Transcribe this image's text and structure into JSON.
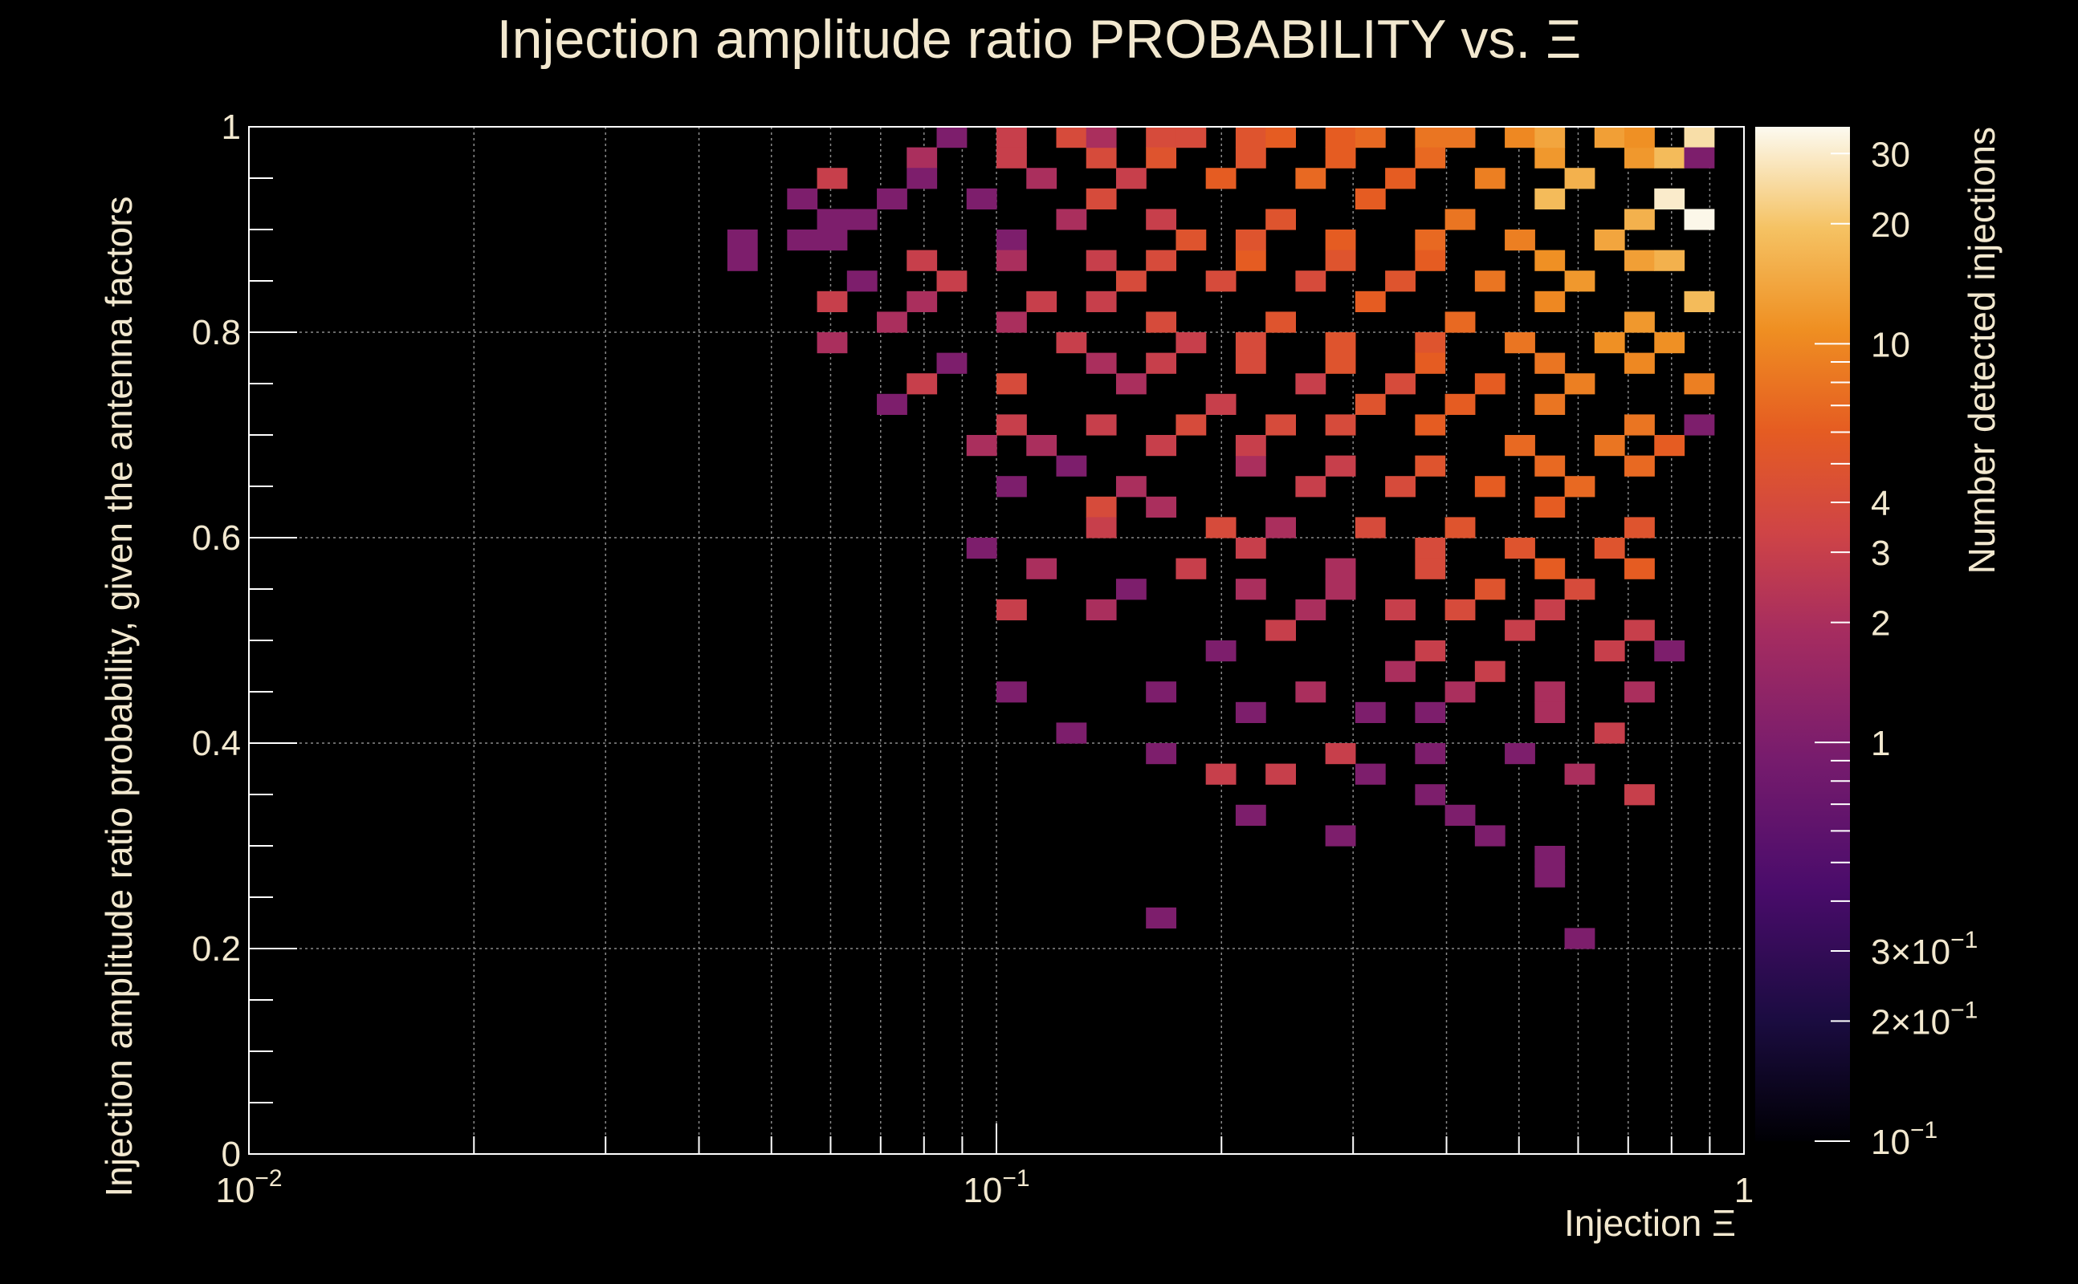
{
  "chart_data": {
    "type": "heatmap",
    "title": "Injection amplitude ratio PROBABILITY vs.  Ξ",
    "xlabel": "Injection Ξ",
    "ylabel": "Injection amplitude ratio probability, given the antenna factors",
    "zlabel": "Number detected injections",
    "x_scale": "log",
    "z_scale": "log",
    "xlim": [
      0.01,
      1
    ],
    "ylim": [
      0,
      1
    ],
    "zlim": [
      0.1,
      35
    ],
    "grid": true,
    "colorbar": "right",
    "x_ticks": [
      {
        "value": 0.01,
        "base": "10",
        "exp": "−2"
      },
      {
        "value": 0.1,
        "base": "10",
        "exp": "−1"
      },
      {
        "value": 1,
        "base": "1",
        "exp": ""
      }
    ],
    "y_ticks": [
      {
        "value": 0,
        "label": "0"
      },
      {
        "value": 0.2,
        "label": "0.2"
      },
      {
        "value": 0.4,
        "label": "0.4"
      },
      {
        "value": 0.6,
        "label": "0.6"
      },
      {
        "value": 0.8,
        "label": "0.8"
      },
      {
        "value": 1,
        "label": "1"
      }
    ],
    "z_ticks": [
      {
        "value": 0.1,
        "label": "10",
        "exp": "−1"
      },
      {
        "value": 0.2,
        "label": "2×10",
        "exp": "−1"
      },
      {
        "value": 0.3,
        "label": "3×10",
        "exp": "−1"
      },
      {
        "value": 1,
        "label": "1",
        "exp": ""
      },
      {
        "value": 2,
        "label": "2",
        "exp": ""
      },
      {
        "value": 3,
        "label": "3",
        "exp": ""
      },
      {
        "value": 4,
        "label": "4",
        "exp": ""
      },
      {
        "value": 10,
        "label": "10",
        "exp": ""
      },
      {
        "value": 20,
        "label": "20",
        "exp": ""
      },
      {
        "value": 30,
        "label": "30",
        "exp": ""
      }
    ],
    "bins": {
      "nx": 50,
      "ny": 50,
      "note_x_range": [
        0.01,
        1
      ],
      "note_y_range": [
        0,
        1
      ]
    },
    "cells": [
      [
        0.044,
        0.89,
        1
      ],
      [
        0.044,
        0.87,
        1
      ],
      [
        0.055,
        0.93,
        1
      ],
      [
        0.055,
        0.89,
        1
      ],
      [
        0.059,
        0.95,
        3
      ],
      [
        0.059,
        0.91,
        1
      ],
      [
        0.059,
        0.89,
        1
      ],
      [
        0.063,
        0.83,
        3
      ],
      [
        0.063,
        0.79,
        2
      ],
      [
        0.067,
        0.91,
        1
      ],
      [
        0.067,
        0.85,
        1
      ],
      [
        0.072,
        0.93,
        1
      ],
      [
        0.072,
        0.81,
        2
      ],
      [
        0.072,
        0.73,
        1
      ],
      [
        0.077,
        0.97,
        2
      ],
      [
        0.077,
        0.87,
        3
      ],
      [
        0.082,
        0.95,
        1
      ],
      [
        0.082,
        0.83,
        2
      ],
      [
        0.082,
        0.75,
        3
      ],
      [
        0.088,
        0.99,
        1
      ],
      [
        0.088,
        0.85,
        3
      ],
      [
        0.088,
        0.77,
        1
      ],
      [
        0.094,
        0.93,
        1
      ],
      [
        0.094,
        0.69,
        2
      ],
      [
        0.094,
        0.59,
        1
      ],
      [
        0.1,
        0.99,
        3
      ],
      [
        0.1,
        0.89,
        1
      ],
      [
        0.1,
        0.81,
        2
      ],
      [
        0.1,
        0.71,
        3
      ],
      [
        0.1,
        0.53,
        3
      ],
      [
        0.107,
        0.97,
        3
      ],
      [
        0.107,
        0.87,
        2
      ],
      [
        0.107,
        0.75,
        4
      ],
      [
        0.107,
        0.65,
        1
      ],
      [
        0.107,
        0.45,
        1
      ],
      [
        0.115,
        0.95,
        2
      ],
      [
        0.115,
        0.83,
        3
      ],
      [
        0.115,
        0.69,
        2
      ],
      [
        0.115,
        0.57,
        2
      ],
      [
        0.123,
        0.99,
        4
      ],
      [
        0.123,
        0.91,
        2
      ],
      [
        0.123,
        0.79,
        3
      ],
      [
        0.123,
        0.67,
        1
      ],
      [
        0.123,
        0.41,
        1
      ],
      [
        0.132,
        0.97,
        4
      ],
      [
        0.132,
        0.87,
        3
      ],
      [
        0.132,
        0.77,
        2
      ],
      [
        0.132,
        0.63,
        4
      ],
      [
        0.132,
        0.53,
        2
      ],
      [
        0.141,
        0.99,
        2
      ],
      [
        0.141,
        0.93,
        4
      ],
      [
        0.141,
        0.83,
        3
      ],
      [
        0.141,
        0.71,
        3
      ],
      [
        0.141,
        0.61,
        3
      ],
      [
        0.151,
        0.95,
        3
      ],
      [
        0.151,
        0.85,
        4
      ],
      [
        0.151,
        0.75,
        2
      ],
      [
        0.151,
        0.65,
        2
      ],
      [
        0.151,
        0.55,
        1
      ],
      [
        0.162,
        0.99,
        4
      ],
      [
        0.162,
        0.91,
        3
      ],
      [
        0.162,
        0.81,
        4
      ],
      [
        0.162,
        0.69,
        3
      ],
      [
        0.162,
        0.39,
        1
      ],
      [
        0.162,
        0.23,
        1
      ],
      [
        0.173,
        0.97,
        5
      ],
      [
        0.173,
        0.87,
        4
      ],
      [
        0.173,
        0.77,
        3
      ],
      [
        0.173,
        0.63,
        2
      ],
      [
        0.173,
        0.45,
        1
      ],
      [
        0.186,
        0.99,
        4
      ],
      [
        0.186,
        0.89,
        5
      ],
      [
        0.186,
        0.79,
        3
      ],
      [
        0.186,
        0.71,
        4
      ],
      [
        0.186,
        0.57,
        3
      ],
      [
        0.199,
        0.95,
        6
      ],
      [
        0.199,
        0.85,
        4
      ],
      [
        0.199,
        0.73,
        3
      ],
      [
        0.199,
        0.61,
        4
      ],
      [
        0.199,
        0.49,
        1
      ],
      [
        0.199,
        0.37,
        3
      ],
      [
        0.213,
        0.99,
        5
      ],
      [
        0.213,
        0.87,
        6
      ],
      [
        0.213,
        0.77,
        4
      ],
      [
        0.213,
        0.67,
        2
      ],
      [
        0.213,
        0.55,
        2
      ],
      [
        0.228,
        0.97,
        5
      ],
      [
        0.228,
        0.89,
        5
      ],
      [
        0.228,
        0.79,
        4
      ],
      [
        0.228,
        0.69,
        3
      ],
      [
        0.228,
        0.59,
        3
      ],
      [
        0.228,
        0.43,
        1
      ],
      [
        0.228,
        0.33,
        1
      ],
      [
        0.245,
        0.99,
        6
      ],
      [
        0.245,
        0.91,
        5
      ],
      [
        0.245,
        0.81,
        5
      ],
      [
        0.245,
        0.71,
        4
      ],
      [
        0.245,
        0.61,
        2
      ],
      [
        0.245,
        0.51,
        3
      ],
      [
        0.245,
        0.37,
        3
      ],
      [
        0.262,
        0.95,
        7
      ],
      [
        0.262,
        0.85,
        4
      ],
      [
        0.262,
        0.75,
        3
      ],
      [
        0.262,
        0.65,
        3
      ],
      [
        0.262,
        0.53,
        2
      ],
      [
        0.262,
        0.45,
        2
      ],
      [
        0.281,
        0.99,
        6
      ],
      [
        0.281,
        0.89,
        6
      ],
      [
        0.281,
        0.79,
        5
      ],
      [
        0.281,
        0.71,
        4
      ],
      [
        0.281,
        0.57,
        2
      ],
      [
        0.281,
        0.39,
        3
      ],
      [
        0.281,
        0.31,
        1
      ],
      [
        0.301,
        0.97,
        6
      ],
      [
        0.301,
        0.87,
        5
      ],
      [
        0.301,
        0.77,
        5
      ],
      [
        0.301,
        0.67,
        3
      ],
      [
        0.301,
        0.55,
        2
      ],
      [
        0.323,
        0.99,
        7
      ],
      [
        0.323,
        0.93,
        6
      ],
      [
        0.323,
        0.83,
        6
      ],
      [
        0.323,
        0.73,
        5
      ],
      [
        0.323,
        0.61,
        4
      ],
      [
        0.323,
        0.43,
        1
      ],
      [
        0.323,
        0.37,
        1
      ],
      [
        0.346,
        0.95,
        6
      ],
      [
        0.346,
        0.85,
        5
      ],
      [
        0.346,
        0.75,
        4
      ],
      [
        0.346,
        0.65,
        4
      ],
      [
        0.346,
        0.53,
        3
      ],
      [
        0.346,
        0.47,
        2
      ],
      [
        0.371,
        0.99,
        8
      ],
      [
        0.371,
        0.89,
        7
      ],
      [
        0.371,
        0.79,
        5
      ],
      [
        0.371,
        0.71,
        6
      ],
      [
        0.371,
        0.59,
        4
      ],
      [
        0.371,
        0.43,
        1
      ],
      [
        0.371,
        0.35,
        1
      ],
      [
        0.398,
        0.97,
        7
      ],
      [
        0.398,
        0.87,
        6
      ],
      [
        0.398,
        0.77,
        6
      ],
      [
        0.398,
        0.67,
        5
      ],
      [
        0.398,
        0.57,
        4
      ],
      [
        0.398,
        0.49,
        3
      ],
      [
        0.398,
        0.39,
        1
      ],
      [
        0.426,
        0.99,
        8
      ],
      [
        0.426,
        0.91,
        8
      ],
      [
        0.426,
        0.81,
        7
      ],
      [
        0.426,
        0.73,
        6
      ],
      [
        0.426,
        0.61,
        5
      ],
      [
        0.426,
        0.53,
        4
      ],
      [
        0.426,
        0.45,
        2
      ],
      [
        0.426,
        0.33,
        1
      ],
      [
        0.457,
        0.95,
        9
      ],
      [
        0.457,
        0.85,
        8
      ],
      [
        0.457,
        0.75,
        6
      ],
      [
        0.457,
        0.65,
        6
      ],
      [
        0.457,
        0.55,
        5
      ],
      [
        0.457,
        0.47,
        3
      ],
      [
        0.457,
        0.31,
        1
      ],
      [
        0.49,
        0.99,
        10
      ],
      [
        0.49,
        0.89,
        9
      ],
      [
        0.49,
        0.79,
        8
      ],
      [
        0.49,
        0.69,
        7
      ],
      [
        0.49,
        0.59,
        5
      ],
      [
        0.49,
        0.51,
        3
      ],
      [
        0.49,
        0.39,
        1
      ],
      [
        0.525,
        0.97,
        12
      ],
      [
        0.525,
        0.87,
        11
      ],
      [
        0.525,
        0.77,
        8
      ],
      [
        0.525,
        0.67,
        7
      ],
      [
        0.525,
        0.57,
        6
      ],
      [
        0.525,
        0.45,
        2
      ],
      [
        0.525,
        0.27,
        1
      ],
      [
        0.562,
        0.99,
        14
      ],
      [
        0.562,
        0.93,
        18
      ],
      [
        0.562,
        0.83,
        10
      ],
      [
        0.562,
        0.73,
        8
      ],
      [
        0.562,
        0.63,
        6
      ],
      [
        0.562,
        0.53,
        3
      ],
      [
        0.562,
        0.43,
        2
      ],
      [
        0.562,
        0.29,
        1
      ],
      [
        0.603,
        0.95,
        16
      ],
      [
        0.603,
        0.85,
        12
      ],
      [
        0.603,
        0.75,
        9
      ],
      [
        0.603,
        0.65,
        7
      ],
      [
        0.603,
        0.55,
        4
      ],
      [
        0.603,
        0.37,
        2
      ],
      [
        0.603,
        0.21,
        1
      ],
      [
        0.646,
        0.99,
        13
      ],
      [
        0.646,
        0.89,
        14
      ],
      [
        0.646,
        0.79,
        11
      ],
      [
        0.646,
        0.69,
        8
      ],
      [
        0.646,
        0.59,
        5
      ],
      [
        0.646,
        0.49,
        3
      ],
      [
        0.646,
        0.41,
        3
      ],
      [
        0.692,
        0.97,
        12
      ],
      [
        0.692,
        0.87,
        13
      ],
      [
        0.692,
        0.77,
        10
      ],
      [
        0.692,
        0.67,
        7
      ],
      [
        0.692,
        0.57,
        6
      ],
      [
        0.692,
        0.45,
        2
      ],
      [
        0.692,
        0.35,
        3
      ],
      [
        0.742,
        0.99,
        11
      ],
      [
        0.742,
        0.91,
        16
      ],
      [
        0.742,
        0.81,
        12
      ],
      [
        0.742,
        0.71,
        8
      ],
      [
        0.742,
        0.61,
        5
      ],
      [
        0.742,
        0.51,
        3
      ],
      [
        0.795,
        0.97,
        18
      ],
      [
        0.795,
        0.93,
        30
      ],
      [
        0.795,
        0.87,
        16
      ],
      [
        0.795,
        0.79,
        11
      ],
      [
        0.795,
        0.69,
        6
      ],
      [
        0.795,
        0.49,
        1
      ],
      [
        0.851,
        0.99,
        26
      ],
      [
        0.851,
        0.91,
        34
      ],
      [
        0.851,
        0.83,
        18
      ],
      [
        0.851,
        0.75,
        9
      ],
      [
        0.851,
        0.71,
        1
      ],
      [
        0.912,
        0.97,
        1
      ]
    ]
  }
}
